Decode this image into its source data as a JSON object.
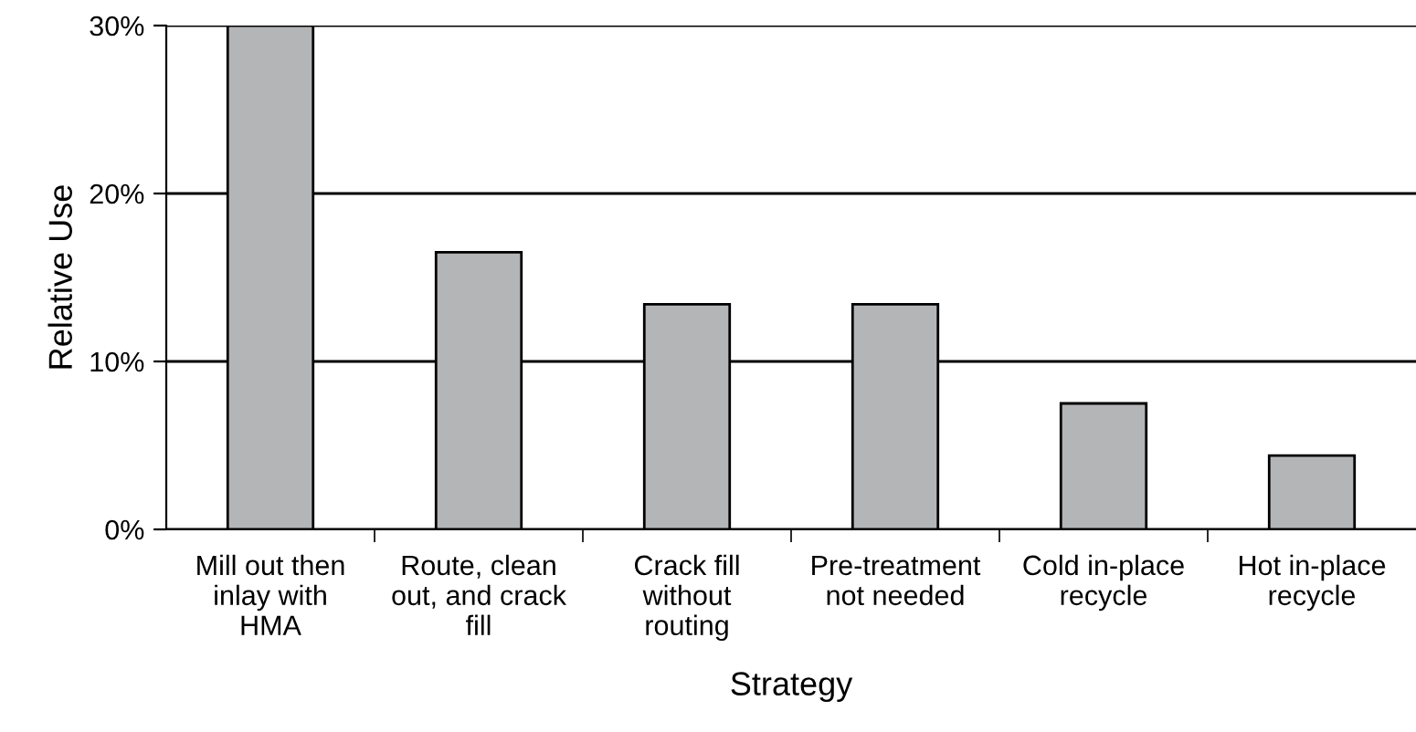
{
  "chart_data": {
    "type": "bar",
    "xlabel": "Strategy",
    "ylabel": "Relative Use",
    "categories": [
      "Mill out then\ninlay with\nHMA",
      "Route, clean\nout, and crack\nfill",
      "Crack fill\nwithout\nrouting",
      "Pre-treatment\nnot needed",
      "Cold in-place\nrecycle",
      "Hot in-place\nrecycle"
    ],
    "values": [
      30,
      16.5,
      13.4,
      13.4,
      7.5,
      4.4
    ],
    "color": "#b4b5b7",
    "ylim": [
      0,
      30
    ],
    "yticks": [
      {
        "value": 0,
        "label": "0%"
      },
      {
        "value": 10,
        "label": "10%"
      },
      {
        "value": 20,
        "label": "20%"
      },
      {
        "value": 30,
        "label": "30%"
      }
    ],
    "grid": "y"
  }
}
